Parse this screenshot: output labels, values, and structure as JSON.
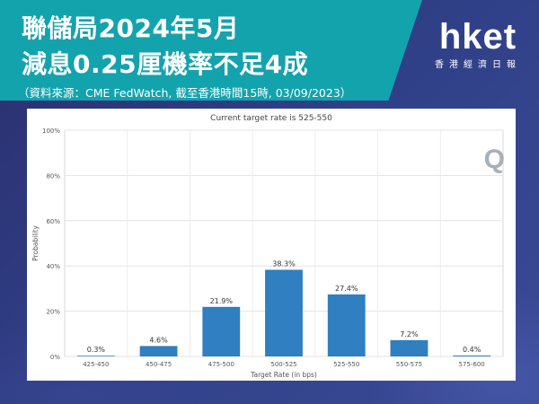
{
  "header": {
    "title_line1": "聯儲局2024年5月",
    "title_line2": "減息0.25厘機率不足4成",
    "source": "（資料來源：CME FedWatch, 截至香港時間15時, 03/09/2023）"
  },
  "logo": {
    "name": "hket",
    "subtitle": "香港經濟日報",
    "accent": "#13a3ad"
  },
  "chart_watermark": "Q",
  "chart_data": {
    "type": "bar",
    "title": "Current target rate is 525-550",
    "xlabel": "Target Rate (in bps)",
    "ylabel": "Probability",
    "categories": [
      "425-450",
      "450-475",
      "475-500",
      "500-525",
      "525-550",
      "550-575",
      "575-600"
    ],
    "values": [
      0.3,
      4.6,
      21.9,
      38.3,
      27.4,
      7.2,
      0.4
    ],
    "data_labels": [
      "0.3%",
      "4.6%",
      "21.9%",
      "38.3%",
      "27.4%",
      "7.2%",
      "0.4%"
    ],
    "yticks": [
      "0%",
      "20%",
      "40%",
      "60%",
      "80%",
      "100%"
    ],
    "ylim": [
      0,
      100
    ],
    "grid": true,
    "bar_color": "#2f7fc1"
  }
}
